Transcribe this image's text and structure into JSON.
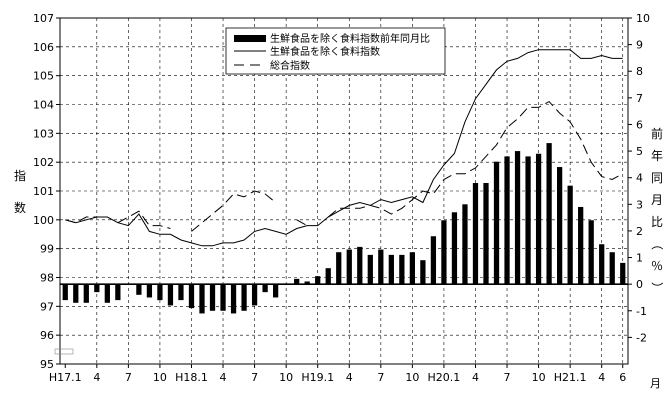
{
  "chart_data": {
    "type": "bar+line",
    "title": "",
    "ylabel_left": "指数",
    "ylabel_right": "前年同月比（％）",
    "xlabel_unit": "月",
    "y_left": {
      "min": 95,
      "max": 107,
      "ticks": [
        "95",
        "96",
        "97",
        "98",
        "99",
        "100",
        "101",
        "102",
        "103",
        "104",
        "105",
        "106",
        "107"
      ]
    },
    "y_right": {
      "min": -3,
      "max": 10,
      "ticks": [
        "-2",
        "-1",
        "0",
        "1",
        "2",
        "3",
        "4",
        "5",
        "6",
        "7",
        "8",
        "9",
        "10"
      ]
    },
    "x_ticks": [
      {
        "i": 0,
        "label": "H17.1"
      },
      {
        "i": 3,
        "label": "4"
      },
      {
        "i": 6,
        "label": "7"
      },
      {
        "i": 9,
        "label": "10"
      },
      {
        "i": 12,
        "label": "H18.1"
      },
      {
        "i": 15,
        "label": "4"
      },
      {
        "i": 18,
        "label": "7"
      },
      {
        "i": 21,
        "label": "10"
      },
      {
        "i": 24,
        "label": "H19.1"
      },
      {
        "i": 27,
        "label": "4"
      },
      {
        "i": 30,
        "label": "7"
      },
      {
        "i": 33,
        "label": "10"
      },
      {
        "i": 36,
        "label": "H20.1"
      },
      {
        "i": 39,
        "label": "4"
      },
      {
        "i": 42,
        "label": "7"
      },
      {
        "i": 45,
        "label": "10"
      },
      {
        "i": 48,
        "label": "H21.1"
      },
      {
        "i": 51,
        "label": "4"
      },
      {
        "i": 53,
        "label": "6"
      }
    ],
    "grid": true,
    "legend_position": "top-center",
    "legend": [
      {
        "name": "生鮮食品を除く食料指数前年同月比",
        "kind": "bar"
      },
      {
        "name": "生鮮食品を除く食料指数",
        "kind": "solid-line"
      },
      {
        "name": "総合指数",
        "kind": "dash-line"
      }
    ],
    "series": [
      {
        "name": "生鮮食品を除く食料指数前年同月比",
        "axis": "right",
        "type": "bar",
        "values": [
          -0.6,
          -0.7,
          -0.7,
          -0.3,
          -0.7,
          -0.6,
          null,
          -0.4,
          -0.5,
          -0.6,
          -0.8,
          -0.6,
          -0.9,
          -1.1,
          -1.0,
          -1.0,
          -1.1,
          -1.0,
          -0.8,
          -0.3,
          -0.5,
          null,
          0.2,
          0.1,
          0.3,
          0.6,
          1.2,
          1.3,
          1.4,
          1.1,
          1.3,
          1.1,
          1.1,
          1.2,
          0.9,
          1.8,
          2.4,
          2.7,
          3.0,
          3.8,
          3.8,
          4.6,
          4.8,
          5.0,
          4.8,
          4.9,
          5.3,
          4.4,
          3.7,
          2.9,
          2.4,
          1.5,
          1.2,
          0.8
        ]
      },
      {
        "name": "生鮮食品を除く食料指数",
        "axis": "left",
        "type": "line",
        "values": [
          100.0,
          99.9,
          100.0,
          100.1,
          100.1,
          99.9,
          99.8,
          100.2,
          99.6,
          99.5,
          99.5,
          99.3,
          99.2,
          99.1,
          99.1,
          99.2,
          99.2,
          99.3,
          99.6,
          99.7,
          99.6,
          99.5,
          99.7,
          99.8,
          99.8,
          100.1,
          100.3,
          100.5,
          100.6,
          100.5,
          100.7,
          100.6,
          100.7,
          100.8,
          100.6,
          101.4,
          101.9,
          102.3,
          103.4,
          104.2,
          104.7,
          105.2,
          105.5,
          105.6,
          105.8,
          105.9,
          105.9,
          105.9,
          105.9,
          105.6,
          105.6,
          105.7,
          105.6,
          105.6
        ]
      },
      {
        "name": "総合指数",
        "axis": "left",
        "type": "dash",
        "values": [
          100.0,
          99.9,
          100.1,
          100.1,
          null,
          99.9,
          100.1,
          100.3,
          99.8,
          99.8,
          99.7,
          null,
          99.6,
          99.9,
          100.2,
          100.5,
          100.9,
          100.8,
          101.0,
          100.9,
          100.6,
          null,
          100.0,
          99.8,
          null,
          100.1,
          100.4,
          100.4,
          100.4,
          100.5,
          100.4,
          100.2,
          100.4,
          100.7,
          101.0,
          100.9,
          101.4,
          101.6,
          101.6,
          101.8,
          102.2,
          102.6,
          103.2,
          103.5,
          103.9,
          103.9,
          104.1,
          103.7,
          103.4,
          102.8,
          102.0,
          101.5,
          101.4,
          101.6
        ]
      }
    ]
  }
}
